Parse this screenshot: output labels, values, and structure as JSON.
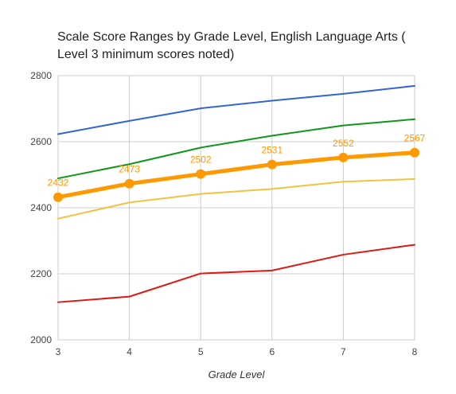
{
  "chart_data": {
    "type": "line",
    "title_lines": [
      "Scale Score Ranges by Grade Level, English Language Arts (",
      "Level 3 minimum scores noted)"
    ],
    "xlabel": "Grade Level",
    "ylabel": "",
    "x": [
      3,
      4,
      5,
      6,
      7,
      8
    ],
    "x_tick_labels": [
      "3",
      "4",
      "5",
      "6",
      "7",
      "8"
    ],
    "xlim": [
      3,
      8
    ],
    "ylim": [
      2000,
      2800
    ],
    "y_ticks": [
      2000,
      2200,
      2400,
      2600,
      2800
    ],
    "y_tick_labels": [
      "2000",
      "2200",
      "2400",
      "2600",
      "2800"
    ],
    "grid": true,
    "legend": "none",
    "series": [
      {
        "color": "#3366cc",
        "values": [
          2623,
          2663,
          2701,
          2724,
          2745,
          2769
        ],
        "emphasis": false,
        "show_labels": false
      },
      {
        "color": "#109618",
        "values": [
          2489,
          2532,
          2582,
          2618,
          2649,
          2668
        ],
        "emphasis": false,
        "show_labels": false
      },
      {
        "color": "#ff9900",
        "values": [
          2432,
          2473,
          2502,
          2531,
          2552,
          2567
        ],
        "emphasis": true,
        "show_labels": true
      },
      {
        "color": "#f4c242",
        "values": [
          2367,
          2416,
          2442,
          2457,
          2479,
          2487
        ],
        "emphasis": false,
        "show_labels": false
      },
      {
        "color": "#dc1a12",
        "values": [
          2114,
          2131,
          2201,
          2210,
          2258,
          2288
        ],
        "emphasis": false,
        "show_labels": false
      }
    ]
  }
}
